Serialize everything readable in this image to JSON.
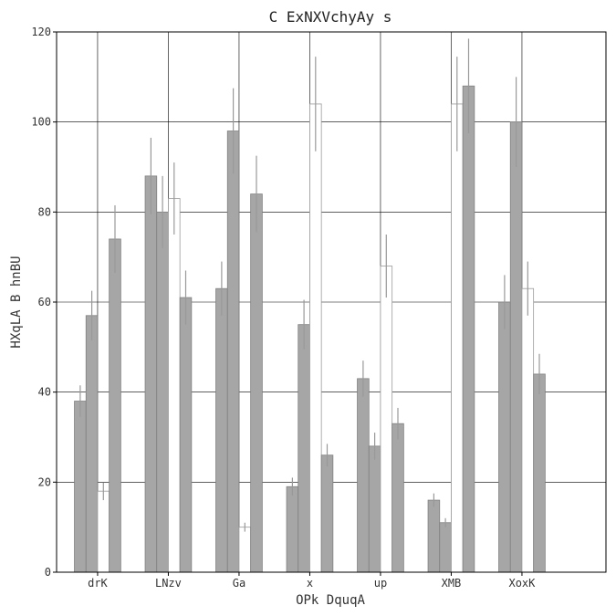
{
  "chart_data": {
    "type": "bar",
    "title": "C ExNXVchyAy s",
    "xlabel": "OPk DquqA",
    "ylabel": "HXqLA B hnBU",
    "ylim": [
      0,
      120
    ],
    "yticks": [
      0,
      20,
      40,
      60,
      80,
      100,
      120
    ],
    "grid": true,
    "categories": [
      "drK",
      "LNzv",
      "Ga",
      "x",
      "up",
      "XMB",
      "XoxK"
    ],
    "series": [
      {
        "values": [
          38,
          88,
          63,
          19,
          43,
          16,
          60
        ],
        "errors": [
          3.5,
          8.5,
          6.0,
          2.0,
          4.0,
          1.5,
          6.0
        ],
        "color": "#a6a6a6"
      },
      {
        "values": [
          57,
          80,
          98,
          55,
          28,
          11,
          100
        ],
        "errors": [
          5.5,
          8.0,
          9.5,
          5.5,
          3.0,
          1.0,
          10.0
        ],
        "color": "#a6a6a6"
      },
      {
        "values": [
          18,
          83,
          10,
          104,
          68,
          104,
          63
        ],
        "errors": [
          2.0,
          8.0,
          1.0,
          10.5,
          7.0,
          10.5,
          6.0
        ],
        "color": "#ffffff"
      },
      {
        "values": [
          74,
          61,
          84,
          26,
          33,
          108,
          44
        ],
        "errors": [
          7.5,
          6.0,
          8.5,
          2.5,
          3.5,
          10.5,
          4.5
        ],
        "color": "#a6a6a6"
      }
    ]
  }
}
